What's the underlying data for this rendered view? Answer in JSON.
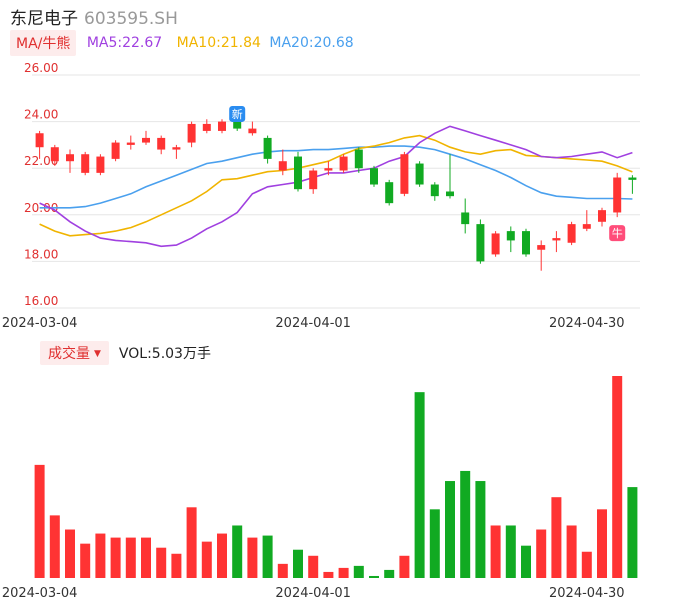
{
  "header": {
    "stock_name": "东尼电子",
    "stock_code": "603595.SH"
  },
  "ma_bar": {
    "selector_label": "MA/牛熊",
    "ma5_label": "MA5:22.67",
    "ma10_label": "MA10:21.84",
    "ma20_label": "MA20:20.68"
  },
  "volume_bar": {
    "selector_label": "成交量",
    "vol_label": "VOL:5.03万手"
  },
  "markers": {
    "new_label": "新",
    "bull_label": "牛"
  },
  "colors": {
    "up": "#ff3333",
    "down": "#11aa22",
    "ma5": "#a040e0",
    "ma10": "#f0b400",
    "ma20": "#4aa0ee",
    "grid": "#e6e6e6",
    "price_axis": "#e03030"
  },
  "chart_data": [
    {
      "type": "candlestick",
      "y_ticks": [
        "26.00",
        "24.00",
        "22.00",
        "20.00",
        "18.00",
        "16.00"
      ],
      "ylim": [
        16,
        26
      ],
      "x_ticks": [
        {
          "label": "2024-03-04",
          "index": 0
        },
        {
          "label": "2024-04-01",
          "index": 18
        },
        {
          "label": "2024-04-30",
          "index": 36
        }
      ],
      "grid": true,
      "candles": [
        {
          "o": 22.9,
          "c": 23.5,
          "h": 23.6,
          "l": 22.4
        },
        {
          "o": 22.3,
          "c": 22.9,
          "h": 23.0,
          "l": 22.1
        },
        {
          "o": 22.3,
          "c": 22.6,
          "h": 22.8,
          "l": 21.8
        },
        {
          "o": 21.8,
          "c": 22.6,
          "h": 22.7,
          "l": 21.7
        },
        {
          "o": 21.8,
          "c": 22.5,
          "h": 22.6,
          "l": 21.7
        },
        {
          "o": 22.4,
          "c": 23.1,
          "h": 23.2,
          "l": 22.3
        },
        {
          "o": 23.0,
          "c": 23.1,
          "h": 23.4,
          "l": 22.8
        },
        {
          "o": 23.1,
          "c": 23.3,
          "h": 23.6,
          "l": 23.0
        },
        {
          "o": 22.8,
          "c": 23.3,
          "h": 23.4,
          "l": 22.6
        },
        {
          "o": 22.8,
          "c": 22.9,
          "h": 23.0,
          "l": 22.4
        },
        {
          "o": 23.1,
          "c": 23.9,
          "h": 24.0,
          "l": 22.9
        },
        {
          "o": 23.6,
          "c": 23.9,
          "h": 24.1,
          "l": 23.5
        },
        {
          "o": 23.6,
          "c": 24.0,
          "h": 24.1,
          "l": 23.5
        },
        {
          "o": 24.0,
          "c": 23.7,
          "h": 24.2,
          "l": 23.6
        },
        {
          "o": 23.5,
          "c": 23.7,
          "h": 24.0,
          "l": 23.4
        },
        {
          "o": 23.3,
          "c": 22.4,
          "h": 23.4,
          "l": 22.2
        },
        {
          "o": 21.9,
          "c": 22.3,
          "h": 22.8,
          "l": 21.7
        },
        {
          "o": 22.5,
          "c": 21.1,
          "h": 22.7,
          "l": 21.0
        },
        {
          "o": 21.1,
          "c": 21.9,
          "h": 22.0,
          "l": 20.9
        },
        {
          "o": 21.9,
          "c": 22.0,
          "h": 22.3,
          "l": 21.7
        },
        {
          "o": 21.9,
          "c": 22.5,
          "h": 22.6,
          "l": 21.8
        },
        {
          "o": 22.8,
          "c": 22.0,
          "h": 22.9,
          "l": 21.8
        },
        {
          "o": 22.0,
          "c": 21.3,
          "h": 22.1,
          "l": 21.2
        },
        {
          "o": 21.4,
          "c": 20.5,
          "h": 21.5,
          "l": 20.4
        },
        {
          "o": 20.9,
          "c": 22.6,
          "h": 22.7,
          "l": 20.8
        },
        {
          "o": 22.2,
          "c": 21.3,
          "h": 22.3,
          "l": 21.2
        },
        {
          "o": 21.3,
          "c": 20.8,
          "h": 21.4,
          "l": 20.6
        },
        {
          "o": 21.0,
          "c": 20.8,
          "h": 22.6,
          "l": 20.7
        },
        {
          "o": 20.1,
          "c": 19.6,
          "h": 20.7,
          "l": 19.2
        },
        {
          "o": 19.6,
          "c": 18.0,
          "h": 19.8,
          "l": 17.9
        },
        {
          "o": 18.3,
          "c": 19.2,
          "h": 19.3,
          "l": 18.2
        },
        {
          "o": 19.3,
          "c": 18.9,
          "h": 19.5,
          "l": 18.4
        },
        {
          "o": 19.3,
          "c": 18.3,
          "h": 19.4,
          "l": 18.2
        },
        {
          "o": 18.5,
          "c": 18.7,
          "h": 18.9,
          "l": 17.6
        },
        {
          "o": 18.9,
          "c": 19.0,
          "h": 19.3,
          "l": 18.4
        },
        {
          "o": 18.8,
          "c": 19.6,
          "h": 19.7,
          "l": 18.7
        },
        {
          "o": 19.4,
          "c": 19.6,
          "h": 20.2,
          "l": 19.3
        },
        {
          "o": 19.7,
          "c": 20.2,
          "h": 20.3,
          "l": 19.5
        },
        {
          "o": 20.1,
          "c": 21.6,
          "h": 21.8,
          "l": 19.9
        },
        {
          "o": 21.6,
          "c": 21.5,
          "h": 21.7,
          "l": 20.9
        }
      ],
      "ma5": [
        20.5,
        20.2,
        19.7,
        19.3,
        19.0,
        18.9,
        18.85,
        18.8,
        18.65,
        18.7,
        19.0,
        19.4,
        19.7,
        20.1,
        20.9,
        21.2,
        21.3,
        21.4,
        21.6,
        21.8,
        21.8,
        21.9,
        22.0,
        22.3,
        22.5,
        23.1,
        23.5,
        23.8,
        23.6,
        23.4,
        23.2,
        23.0,
        22.8,
        22.5,
        22.45,
        22.5,
        22.6,
        22.7,
        22.45,
        22.67
      ],
      "ma10": [
        19.6,
        19.3,
        19.1,
        19.15,
        19.2,
        19.3,
        19.45,
        19.7,
        20.0,
        20.3,
        20.6,
        21.0,
        21.5,
        21.55,
        21.7,
        21.85,
        21.9,
        22.0,
        22.15,
        22.3,
        22.6,
        22.85,
        22.95,
        23.1,
        23.3,
        23.4,
        23.2,
        22.9,
        22.7,
        22.6,
        22.75,
        22.8,
        22.55,
        22.5,
        22.45,
        22.4,
        22.35,
        22.3,
        22.1,
        21.84
      ],
      "ma20": [
        20.3,
        20.3,
        20.3,
        20.35,
        20.5,
        20.7,
        20.9,
        21.2,
        21.45,
        21.7,
        21.95,
        22.2,
        22.3,
        22.45,
        22.6,
        22.7,
        22.75,
        22.75,
        22.8,
        22.8,
        22.85,
        22.9,
        22.9,
        22.95,
        22.95,
        22.9,
        22.8,
        22.6,
        22.4,
        22.15,
        21.9,
        21.6,
        21.25,
        20.95,
        20.8,
        20.75,
        20.7,
        20.7,
        20.7,
        20.68
      ]
    },
    {
      "type": "bar",
      "name": "成交量",
      "ylim": [
        0,
        100
      ],
      "x_ticks": [
        {
          "label": "2024-03-04",
          "index": 0
        },
        {
          "label": "2024-04-01",
          "index": 18
        },
        {
          "label": "2024-04-30",
          "index": 36
        }
      ],
      "values": [
        56,
        31,
        24,
        17,
        22,
        20,
        20,
        20,
        15,
        12,
        35,
        18,
        22,
        26,
        20,
        21,
        7,
        14,
        11,
        3,
        5,
        6,
        1,
        4,
        11,
        92,
        34,
        48,
        53,
        48,
        26,
        26,
        16,
        24,
        40,
        26,
        13,
        34,
        100,
        45
      ]
    }
  ]
}
